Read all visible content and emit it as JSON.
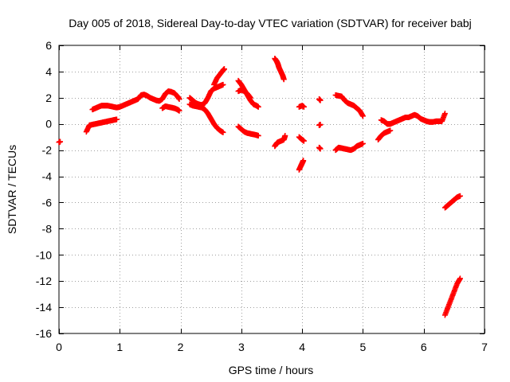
{
  "chart_data": {
    "type": "scatter",
    "title": "Day 005 of 2018, Sidereal Day-to-day VTEC variation (SDTVAR) for receiver babj",
    "xlabel": "GPS time / hours",
    "ylabel": "SDTVAR / TECUs",
    "xlim": [
      0,
      7
    ],
    "ylim": [
      -16,
      6
    ],
    "xticks": [
      0,
      1,
      2,
      3,
      4,
      5,
      6,
      7
    ],
    "yticks": [
      -16,
      -14,
      -12,
      -10,
      -8,
      -6,
      -4,
      -2,
      0,
      2,
      4,
      6
    ],
    "grid": true,
    "marker": "+",
    "color": "#ff0000",
    "segments": [
      [
        [
          0.0,
          -1.4
        ],
        [
          0.02,
          -1.35
        ]
      ],
      [
        [
          0.45,
          -0.6
        ],
        [
          0.5,
          -0.1
        ],
        [
          0.55,
          -0.05
        ],
        [
          0.6,
          0.0
        ],
        [
          0.65,
          0.05
        ],
        [
          0.7,
          0.1
        ],
        [
          0.75,
          0.15
        ],
        [
          0.8,
          0.2
        ],
        [
          0.85,
          0.25
        ],
        [
          0.9,
          0.3
        ],
        [
          0.95,
          0.35
        ]
      ],
      [
        [
          0.55,
          1.1
        ],
        [
          0.6,
          1.2
        ],
        [
          0.65,
          1.3
        ],
        [
          0.7,
          1.4
        ],
        [
          0.75,
          1.4
        ],
        [
          0.8,
          1.4
        ],
        [
          0.85,
          1.35
        ],
        [
          0.9,
          1.3
        ],
        [
          0.95,
          1.25
        ],
        [
          1.0,
          1.3
        ],
        [
          1.05,
          1.4
        ],
        [
          1.1,
          1.5
        ],
        [
          1.15,
          1.6
        ],
        [
          1.2,
          1.7
        ],
        [
          1.25,
          1.8
        ],
        [
          1.3,
          1.9
        ],
        [
          1.35,
          2.2
        ],
        [
          1.4,
          2.25
        ],
        [
          1.45,
          2.15
        ],
        [
          1.5,
          2.0
        ],
        [
          1.55,
          1.9
        ],
        [
          1.6,
          1.8
        ],
        [
          1.65,
          1.75
        ],
        [
          1.7,
          1.9
        ],
        [
          1.75,
          2.3
        ],
        [
          1.8,
          2.5
        ],
        [
          1.85,
          2.45
        ],
        [
          1.9,
          2.35
        ],
        [
          1.95,
          2.1
        ],
        [
          1.98,
          1.9
        ]
      ],
      [
        [
          1.7,
          1.2
        ],
        [
          1.75,
          1.35
        ],
        [
          1.8,
          1.3
        ],
        [
          1.85,
          1.25
        ],
        [
          1.9,
          1.2
        ],
        [
          1.95,
          1.1
        ],
        [
          1.98,
          1.0
        ]
      ],
      [
        [
          2.15,
          2.0
        ],
        [
          2.2,
          1.8
        ],
        [
          2.25,
          1.6
        ],
        [
          2.3,
          1.5
        ],
        [
          2.35,
          1.45
        ],
        [
          2.4,
          1.6
        ],
        [
          2.45,
          2.0
        ],
        [
          2.5,
          2.5
        ],
        [
          2.55,
          2.7
        ],
        [
          2.6,
          2.8
        ],
        [
          2.65,
          2.9
        ],
        [
          2.7,
          3.0
        ]
      ],
      [
        [
          2.15,
          1.5
        ],
        [
          2.2,
          1.4
        ],
        [
          2.25,
          1.35
        ],
        [
          2.3,
          1.3
        ],
        [
          2.35,
          1.25
        ],
        [
          2.4,
          1.1
        ],
        [
          2.45,
          0.8
        ],
        [
          2.5,
          0.4
        ],
        [
          2.55,
          0.0
        ],
        [
          2.6,
          -0.3
        ],
        [
          2.65,
          -0.5
        ],
        [
          2.7,
          -0.65
        ]
      ],
      [
        [
          2.55,
          3.0
        ],
        [
          2.6,
          3.5
        ],
        [
          2.65,
          3.8
        ],
        [
          2.7,
          4.1
        ],
        [
          2.72,
          4.2
        ]
      ],
      [
        [
          2.95,
          3.3
        ],
        [
          3.0,
          3.0
        ],
        [
          3.05,
          2.6
        ],
        [
          3.1,
          2.2
        ],
        [
          3.15,
          1.8
        ],
        [
          3.2,
          1.5
        ],
        [
          3.25,
          1.4
        ],
        [
          3.28,
          1.3
        ]
      ],
      [
        [
          2.95,
          2.5
        ],
        [
          3.0,
          2.6
        ],
        [
          3.05,
          2.5
        ],
        [
          3.1,
          2.3
        ],
        [
          3.15,
          2.0
        ]
      ],
      [
        [
          2.95,
          -0.2
        ],
        [
          3.0,
          -0.4
        ],
        [
          3.05,
          -0.6
        ],
        [
          3.1,
          -0.7
        ],
        [
          3.15,
          -0.75
        ],
        [
          3.2,
          -0.8
        ],
        [
          3.25,
          -0.85
        ],
        [
          3.28,
          -0.9
        ]
      ],
      [
        [
          3.55,
          5.0
        ],
        [
          3.58,
          4.8
        ],
        [
          3.6,
          4.6
        ],
        [
          3.62,
          4.3
        ],
        [
          3.65,
          4.0
        ],
        [
          3.68,
          3.7
        ],
        [
          3.7,
          3.4
        ]
      ],
      [
        [
          3.55,
          -1.7
        ],
        [
          3.58,
          -1.5
        ],
        [
          3.6,
          -1.4
        ],
        [
          3.65,
          -1.3
        ],
        [
          3.7,
          -1.2
        ],
        [
          3.72,
          -0.9
        ]
      ],
      [
        [
          3.95,
          1.3
        ],
        [
          4.0,
          1.4
        ],
        [
          4.03,
          1.3
        ]
      ],
      [
        [
          3.95,
          -1.0
        ],
        [
          4.0,
          -1.2
        ],
        [
          4.03,
          -1.3
        ]
      ],
      [
        [
          3.95,
          -3.5
        ],
        [
          3.98,
          -3.2
        ],
        [
          4.0,
          -3.0
        ],
        [
          4.02,
          -2.8
        ]
      ],
      [
        [
          4.28,
          1.9
        ],
        [
          4.3,
          1.8
        ]
      ],
      [
        [
          4.28,
          -0.1
        ],
        [
          4.3,
          -0.05
        ]
      ],
      [
        [
          4.28,
          -1.8
        ],
        [
          4.3,
          -1.9
        ]
      ],
      [
        [
          4.55,
          2.2
        ],
        [
          4.6,
          2.15
        ],
        [
          4.65,
          2.1
        ],
        [
          4.7,
          1.8
        ],
        [
          4.75,
          1.6
        ],
        [
          4.8,
          1.5
        ],
        [
          4.85,
          1.4
        ],
        [
          4.9,
          1.2
        ],
        [
          4.95,
          1.0
        ],
        [
          5.0,
          0.6
        ]
      ],
      [
        [
          4.55,
          -2.0
        ],
        [
          4.6,
          -1.8
        ],
        [
          4.65,
          -1.85
        ],
        [
          4.7,
          -1.9
        ],
        [
          4.75,
          -1.95
        ],
        [
          4.8,
          -2.0
        ],
        [
          4.85,
          -1.9
        ],
        [
          4.9,
          -1.7
        ],
        [
          4.95,
          -1.6
        ],
        [
          5.0,
          -1.5
        ]
      ],
      [
        [
          5.25,
          -1.2
        ],
        [
          5.3,
          -0.9
        ],
        [
          5.35,
          -0.7
        ],
        [
          5.4,
          -0.6
        ],
        [
          5.45,
          -0.5
        ]
      ],
      [
        [
          5.3,
          0.3
        ],
        [
          5.35,
          0.2
        ],
        [
          5.4,
          0.0
        ],
        [
          5.45,
          0.0
        ],
        [
          5.5,
          0.1
        ],
        [
          5.55,
          0.2
        ],
        [
          5.6,
          0.3
        ],
        [
          5.65,
          0.4
        ],
        [
          5.7,
          0.5
        ],
        [
          5.75,
          0.5
        ],
        [
          5.8,
          0.6
        ],
        [
          5.85,
          0.7
        ],
        [
          5.9,
          0.6
        ],
        [
          5.95,
          0.4
        ],
        [
          6.0,
          0.3
        ],
        [
          6.05,
          0.2
        ],
        [
          6.1,
          0.15
        ],
        [
          6.15,
          0.15
        ],
        [
          6.2,
          0.2
        ],
        [
          6.25,
          0.2
        ],
        [
          6.3,
          0.2
        ],
        [
          6.35,
          0.8
        ]
      ],
      [
        [
          6.35,
          -6.4
        ],
        [
          6.4,
          -6.2
        ],
        [
          6.45,
          -6.0
        ],
        [
          6.5,
          -5.8
        ],
        [
          6.55,
          -5.6
        ],
        [
          6.6,
          -5.5
        ]
      ],
      [
        [
          6.35,
          -14.6
        ],
        [
          6.4,
          -14.0
        ],
        [
          6.45,
          -13.4
        ],
        [
          6.5,
          -12.8
        ],
        [
          6.55,
          -12.2
        ],
        [
          6.6,
          -11.8
        ]
      ]
    ]
  }
}
